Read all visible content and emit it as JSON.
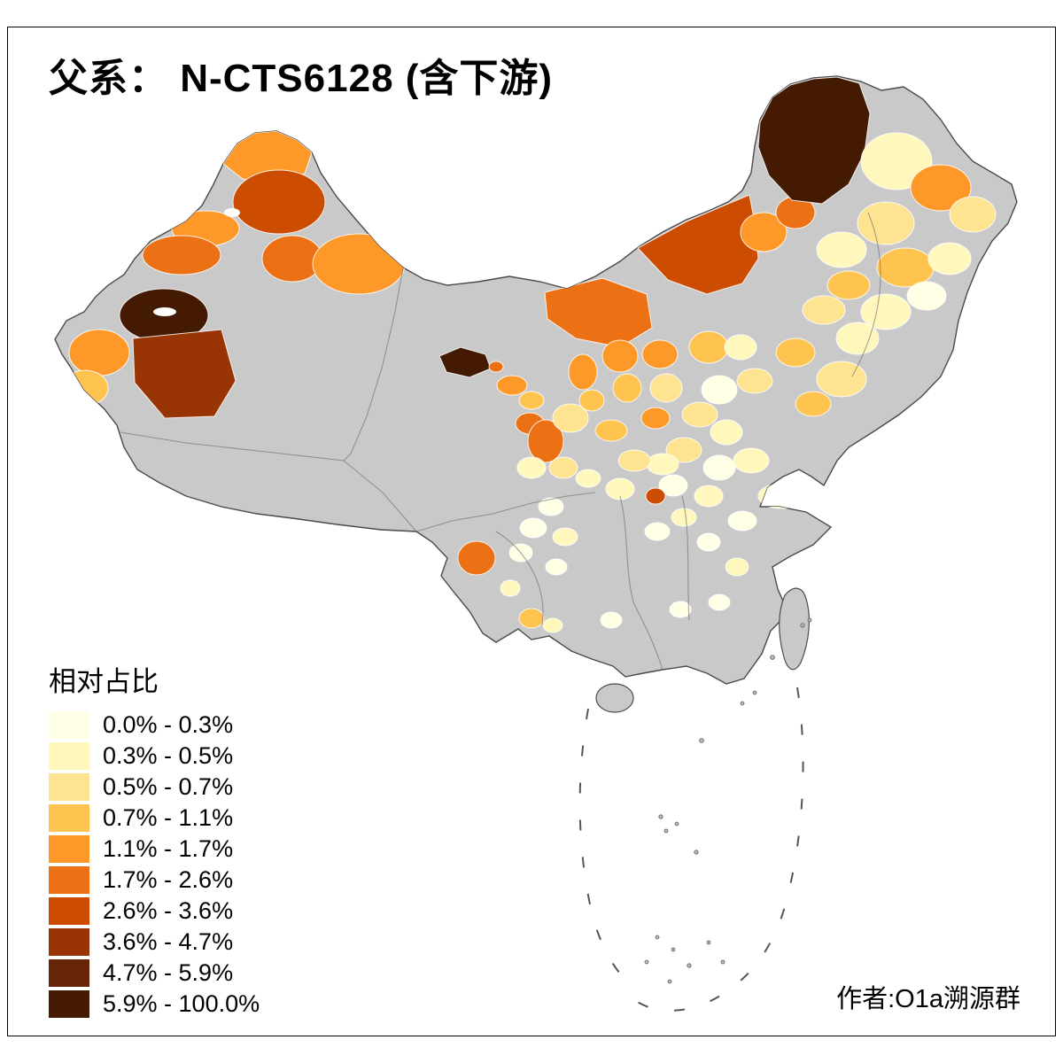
{
  "title": "父系： N-CTS6128 (含下游)",
  "author_credit": "作者:O1a溯源群",
  "legend": {
    "title": "相对占比",
    "items": [
      {
        "label": "0.0% - 0.3%",
        "color": "#FFFFE5"
      },
      {
        "label": "0.3% - 0.5%",
        "color": "#FFF7BC"
      },
      {
        "label": "0.5% - 0.7%",
        "color": "#FEE391"
      },
      {
        "label": "0.7% - 1.1%",
        "color": "#FEC44F"
      },
      {
        "label": "1.1% - 1.7%",
        "color": "#FE9929"
      },
      {
        "label": "1.7% - 2.6%",
        "color": "#EC7014"
      },
      {
        "label": "2.6% - 3.6%",
        "color": "#CC4C02"
      },
      {
        "label": "3.6% - 4.7%",
        "color": "#993404"
      },
      {
        "label": "4.7% - 5.9%",
        "color": "#662506"
      },
      {
        "label": "5.9% - 100.0%",
        "color": "#451A03"
      }
    ]
  },
  "map": {
    "no_data_color": "#C9C9C9",
    "outline_color": "#4A4A4A",
    "sea_color": "#FFFFFF",
    "regions": [
      {
        "name": "altay",
        "bin": 5,
        "poly": "252,185 268,162 288,150 312,148 335,158 352,172 344,196 308,206 274,202"
      },
      {
        "name": "tacheng",
        "bin": 7,
        "ellipse": [
          315,
          228,
          52,
          36
        ]
      },
      {
        "name": "bortala",
        "bin": 5,
        "ellipse": [
          232,
          258,
          38,
          20
        ]
      },
      {
        "name": "ebinur-gap",
        "color": "#FFFFFF",
        "ellipse": [
          262,
          240,
          9,
          5
        ]
      },
      {
        "name": "ili",
        "bin": 6,
        "ellipse": [
          205,
          288,
          44,
          22
        ]
      },
      {
        "name": "urumqi",
        "bin": 6,
        "ellipse": [
          330,
          292,
          34,
          26
        ]
      },
      {
        "name": "turpan-hami",
        "bin": 5,
        "ellipse": [
          405,
          298,
          52,
          34
        ]
      },
      {
        "name": "ili-south-dark",
        "bin": 10,
        "ellipse": [
          185,
          356,
          50,
          30
        ]
      },
      {
        "name": "sayram-lake",
        "color": "#FFFFFF",
        "ellipse": [
          186,
          352,
          13,
          5
        ]
      },
      {
        "name": "kashgar",
        "bin": 8,
        "poly": "150,382 250,372 266,430 242,470 186,472 152,432"
      },
      {
        "name": "kizilsu",
        "bin": 5,
        "ellipse": [
          112,
          398,
          34,
          26
        ]
      },
      {
        "name": "west-pamir",
        "bin": 4,
        "ellipse": [
          96,
          438,
          26,
          20
        ]
      },
      {
        "name": "jiuquan-dark",
        "bin": 10,
        "poly": "496,402 520,392 548,400 554,416 530,426 504,420"
      },
      {
        "name": "jiayuguan-dot",
        "bin": 6,
        "ellipse": [
          560,
          414,
          8,
          6
        ]
      },
      {
        "name": "zhangye",
        "bin": 5,
        "ellipse": [
          578,
          435,
          17,
          11
        ]
      },
      {
        "name": "wuwei",
        "bin": 4,
        "ellipse": [
          600,
          452,
          14,
          10
        ]
      },
      {
        "name": "xining",
        "bin": 6,
        "ellipse": [
          598,
          478,
          16,
          12
        ]
      },
      {
        "name": "lanzhou",
        "bin": 6,
        "ellipse": [
          616,
          498,
          20,
          24
        ]
      },
      {
        "name": "gannan",
        "bin": 2,
        "ellipse": [
          600,
          528,
          16,
          12
        ]
      },
      {
        "name": "longnan",
        "bin": 3,
        "ellipse": [
          636,
          528,
          16,
          12
        ]
      },
      {
        "name": "baiyin",
        "bin": 3,
        "ellipse": [
          644,
          472,
          20,
          16
        ]
      },
      {
        "name": "ningxia-north",
        "bin": 5,
        "ellipse": [
          658,
          420,
          16,
          20
        ]
      },
      {
        "name": "ningxia-south",
        "bin": 4,
        "ellipse": [
          668,
          452,
          14,
          12
        ]
      },
      {
        "name": "bayannur-ordos",
        "bin": 6,
        "poly": "615,330 680,314 730,332 736,370 700,392 650,382 618,360"
      },
      {
        "name": "yulin",
        "bin": 5,
        "ellipse": [
          700,
          402,
          20,
          18
        ]
      },
      {
        "name": "yanan",
        "bin": 4,
        "ellipse": [
          708,
          438,
          16,
          16
        ]
      },
      {
        "name": "guanzhong",
        "bin": 4,
        "ellipse": [
          690,
          486,
          18,
          12
        ]
      },
      {
        "name": "shanxi-north",
        "bin": 5,
        "ellipse": [
          745,
          400,
          20,
          16
        ]
      },
      {
        "name": "shanxi-mid",
        "bin": 3,
        "ellipse": [
          752,
          438,
          18,
          16
        ]
      },
      {
        "name": "shanxi-south",
        "bin": 5,
        "ellipse": [
          740,
          472,
          16,
          12
        ]
      },
      {
        "name": "xilingol",
        "bin": 7,
        "poly": "720,280 775,250 822,230 846,220 852,252 856,292 838,320 798,332 754,316"
      },
      {
        "name": "chifeng",
        "bin": 5,
        "ellipse": [
          862,
          262,
          26,
          22
        ]
      },
      {
        "name": "tongliao",
        "bin": 6,
        "ellipse": [
          898,
          240,
          22,
          18
        ]
      },
      {
        "name": "hulunbuir",
        "bin": 10,
        "poly": "858,138 872,110 892,96 918,89 945,87 970,94 982,128 976,172 958,208 928,230 894,226 868,198 856,166"
      },
      {
        "name": "heihe",
        "bin": 2,
        "ellipse": [
          1012,
          182,
          40,
          32
        ]
      },
      {
        "name": "yichun",
        "bin": 5,
        "ellipse": [
          1062,
          212,
          34,
          26
        ]
      },
      {
        "name": "hegang",
        "bin": 3,
        "ellipse": [
          1098,
          242,
          26,
          20
        ]
      },
      {
        "name": "qiqihar",
        "bin": 3,
        "ellipse": [
          1000,
          252,
          32,
          24
        ]
      },
      {
        "name": "xingan-league",
        "bin": 2,
        "ellipse": [
          950,
          282,
          28,
          20
        ]
      },
      {
        "name": "harbin",
        "bin": 4,
        "ellipse": [
          1022,
          302,
          32,
          22
        ]
      },
      {
        "name": "jiamusi",
        "bin": 2,
        "ellipse": [
          1072,
          292,
          24,
          18
        ]
      },
      {
        "name": "baicheng",
        "bin": 4,
        "ellipse": [
          958,
          322,
          24,
          16
        ]
      },
      {
        "name": "mudanjiang",
        "bin": 1,
        "ellipse": [
          1046,
          334,
          22,
          16
        ]
      },
      {
        "name": "jilin-central",
        "bin": 2,
        "ellipse": [
          1000,
          352,
          28,
          20
        ]
      },
      {
        "name": "songyuan",
        "bin": 3,
        "ellipse": [
          930,
          350,
          24,
          16
        ]
      },
      {
        "name": "changchun",
        "bin": 2,
        "ellipse": [
          968,
          382,
          24,
          18
        ]
      },
      {
        "name": "shenyang",
        "bin": 3,
        "ellipse": [
          950,
          428,
          28,
          20
        ]
      },
      {
        "name": "liaoyang",
        "bin": 4,
        "ellipse": [
          918,
          456,
          20,
          14
        ]
      },
      {
        "name": "chaoyang",
        "bin": 4,
        "ellipse": [
          898,
          398,
          22,
          16
        ]
      },
      {
        "name": "beijing-area",
        "bin": 3,
        "ellipse": [
          852,
          430,
          20,
          14
        ]
      },
      {
        "name": "zhangjiakou",
        "bin": 4,
        "ellipse": [
          800,
          392,
          22,
          18
        ]
      },
      {
        "name": "chengde",
        "bin": 2,
        "ellipse": [
          836,
          392,
          18,
          14
        ]
      },
      {
        "name": "hebei-central",
        "bin": 1,
        "ellipse": [
          812,
          440,
          20,
          16
        ]
      },
      {
        "name": "shijiazhuang",
        "bin": 3,
        "ellipse": [
          790,
          468,
          20,
          14
        ]
      },
      {
        "name": "hebei-south",
        "bin": 2,
        "ellipse": [
          820,
          488,
          18,
          14
        ]
      },
      {
        "name": "jinan",
        "bin": 2,
        "ellipse": [
          848,
          520,
          20,
          14
        ]
      },
      {
        "name": "shandong-west",
        "bin": 1,
        "ellipse": [
          812,
          528,
          18,
          14
        ]
      },
      {
        "name": "shandong-peninsula",
        "bin": 2,
        "ellipse": [
          882,
          560,
          26,
          14
        ]
      },
      {
        "name": "henan-north",
        "bin": 3,
        "ellipse": [
          772,
          508,
          20,
          14
        ]
      },
      {
        "name": "zhengzhou",
        "bin": 2,
        "ellipse": [
          748,
          524,
          18,
          12
        ]
      },
      {
        "name": "henan-west",
        "bin": 3,
        "ellipse": [
          716,
          520,
          18,
          12
        ]
      },
      {
        "name": "henan-south",
        "bin": 1,
        "ellipse": [
          760,
          548,
          16,
          12
        ]
      },
      {
        "name": "nanyang-dark",
        "bin": 7,
        "ellipse": [
          740,
          560,
          11,
          9
        ]
      },
      {
        "name": "hubei-northwest",
        "bin": 2,
        "ellipse": [
          700,
          552,
          16,
          12
        ]
      },
      {
        "name": "anhui-north",
        "bin": 2,
        "ellipse": [
          800,
          560,
          16,
          12
        ]
      },
      {
        "name": "jiangsu-north",
        "bin": 1,
        "ellipse": [
          838,
          588,
          16,
          11
        ]
      },
      {
        "name": "hanzhong",
        "bin": 2,
        "ellipse": [
          664,
          540,
          14,
          10
        ]
      },
      {
        "name": "chengdu-east",
        "bin": 1,
        "ellipse": [
          622,
          572,
          14,
          10
        ]
      },
      {
        "name": "sichuan-central",
        "bin": 1,
        "ellipse": [
          602,
          596,
          15,
          11
        ]
      },
      {
        "name": "chongqing",
        "bin": 2,
        "ellipse": [
          638,
          606,
          14,
          10
        ]
      },
      {
        "name": "sichuan-south",
        "bin": 1,
        "ellipse": [
          588,
          624,
          13,
          10
        ]
      },
      {
        "name": "guizhou-north",
        "bin": 1,
        "ellipse": [
          628,
          640,
          12,
          9
        ]
      },
      {
        "name": "dali",
        "bin": 6,
        "ellipse": [
          538,
          630,
          21,
          19
        ]
      },
      {
        "name": "kunming-south",
        "bin": 2,
        "ellipse": [
          576,
          664,
          11,
          9
        ]
      },
      {
        "name": "honghe",
        "bin": 4,
        "ellipse": [
          600,
          698,
          14,
          11
        ]
      },
      {
        "name": "wenshan",
        "bin": 2,
        "ellipse": [
          624,
          706,
          11,
          8
        ]
      },
      {
        "name": "hunan-north",
        "bin": 1,
        "ellipse": [
          742,
          600,
          14,
          10
        ]
      },
      {
        "name": "wuhan",
        "bin": 2,
        "ellipse": [
          772,
          584,
          14,
          10
        ]
      },
      {
        "name": "jiangxi-north",
        "bin": 1,
        "ellipse": [
          800,
          612,
          13,
          10
        ]
      },
      {
        "name": "zhejiang-west",
        "bin": 2,
        "ellipse": [
          832,
          640,
          13,
          10
        ]
      },
      {
        "name": "fujian-central",
        "bin": 1,
        "ellipse": [
          812,
          680,
          12,
          9
        ]
      },
      {
        "name": "guangdong-north",
        "bin": 1,
        "ellipse": [
          768,
          688,
          12,
          9
        ]
      },
      {
        "name": "guangxi-central",
        "bin": 1,
        "ellipse": [
          690,
          700,
          12,
          9
        ]
      }
    ]
  }
}
